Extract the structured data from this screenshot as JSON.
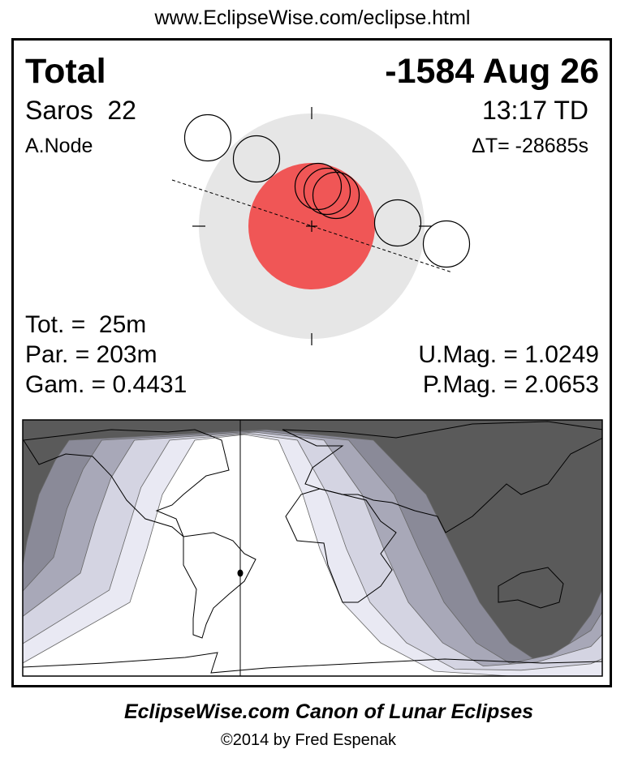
{
  "header": {
    "url": "www.EclipseWise.com/eclipse.html"
  },
  "eclipse": {
    "type": "Total",
    "date": "-1584 Aug 26",
    "saros": "Saros  22",
    "time": "13:17 TD",
    "node": "A.Node",
    "delta_t": "ΔT= -28685s"
  },
  "stats": {
    "totality": "Tot. =  25m",
    "partial": "Par. = 203m",
    "gamma": "Gam. = 0.4431",
    "umag": "U.Mag. = 1.0249",
    "pmag": "P.Mag. = 2.0653"
  },
  "colors": {
    "umbra": "#f05656",
    "penumbra": "#e6e6e6",
    "night": "#5a5a5a",
    "bands": [
      "#8a8a98",
      "#a8a8b8",
      "#d4d4e2",
      "#e9e9f3",
      "#ffffff"
    ]
  },
  "footer": {
    "title": "EclipseWise.com Canon of Lunar Eclipses",
    "copyright": "©2014 by Fred Espenak"
  }
}
